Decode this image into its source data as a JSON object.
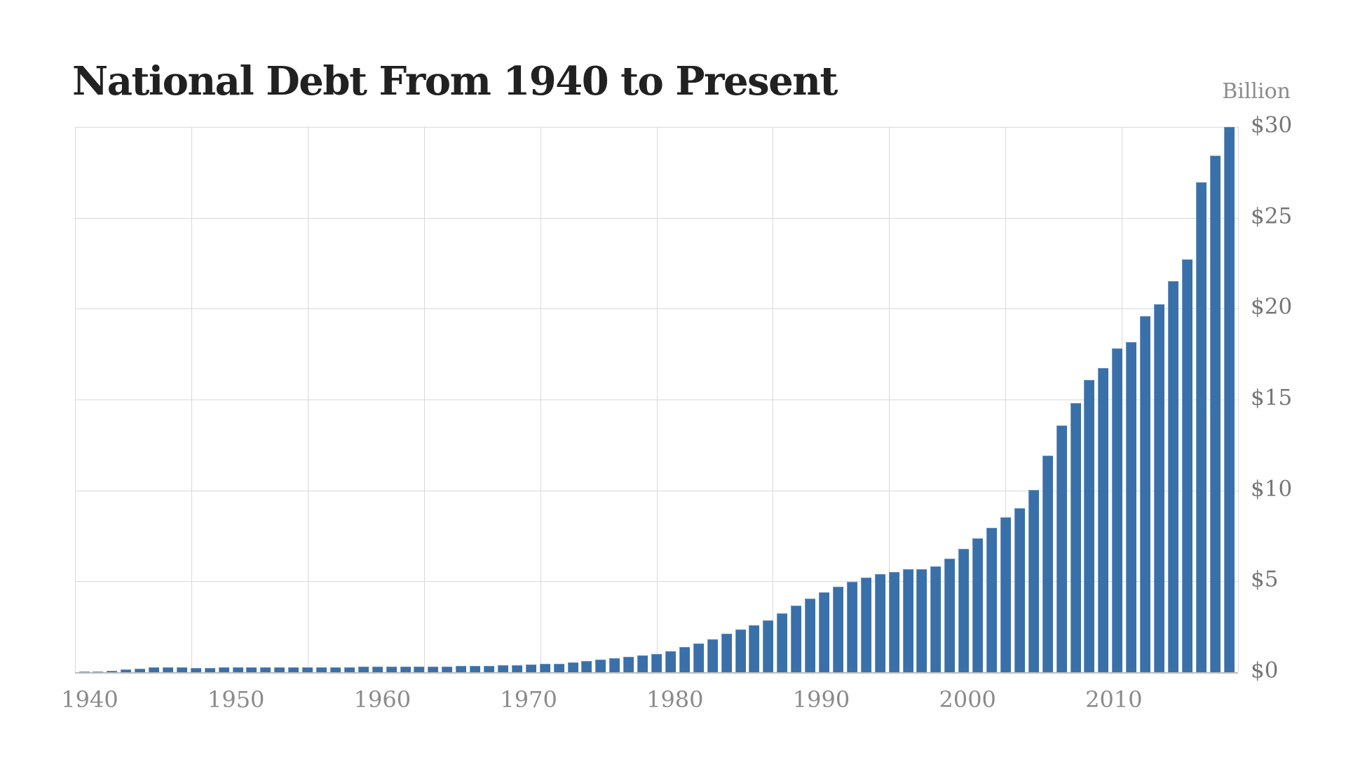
{
  "chart": {
    "title": "National Debt From 1940 to Present",
    "unit_label": "Billion"
  },
  "colors": {
    "bar": "#3a70a9",
    "gridline": "#d9d9d9",
    "zero_axis": "#bdbdbd",
    "title_text": "#212121",
    "x_label_text": "#8a8a8a",
    "y_label_text": "#757575",
    "background": "#ffffff"
  },
  "chart_data": {
    "type": "bar",
    "title": "National Debt From 1940 to Present",
    "unit_label": "Billion",
    "xlabel": "",
    "ylabel": "",
    "ylim": [
      0,
      30
    ],
    "grid": true,
    "legend": "none",
    "y_axis_side": "right",
    "ytick_labels": [
      "$0",
      "$5",
      "$10",
      "$15",
      "$20",
      "$25",
      "$30"
    ],
    "xtick_labels": [
      "1940",
      "1950",
      "1960",
      "1970",
      "1980",
      "1990",
      "2000",
      "2010"
    ],
    "years": [
      1940,
      1941,
      1942,
      1943,
      1944,
      1945,
      1946,
      1947,
      1948,
      1949,
      1950,
      1951,
      1952,
      1953,
      1954,
      1955,
      1956,
      1957,
      1958,
      1959,
      1960,
      1961,
      1962,
      1963,
      1964,
      1965,
      1966,
      1967,
      1968,
      1969,
      1970,
      1971,
      1972,
      1973,
      1974,
      1975,
      1976,
      1977,
      1978,
      1979,
      1980,
      1981,
      1982,
      1983,
      1984,
      1985,
      1986,
      1987,
      1988,
      1989,
      1990,
      1991,
      1992,
      1993,
      1994,
      1995,
      1996,
      1997,
      1998,
      1999,
      2000,
      2001,
      2002,
      2003,
      2004,
      2005,
      2006,
      2007,
      2008,
      2009,
      2010,
      2011,
      2012,
      2013,
      2014,
      2015,
      2016,
      2017,
      2018,
      2019,
      2020,
      2021,
      2022
    ],
    "values": [
      0.04,
      0.05,
      0.07,
      0.14,
      0.2,
      0.26,
      0.27,
      0.26,
      0.25,
      0.25,
      0.26,
      0.26,
      0.26,
      0.27,
      0.27,
      0.27,
      0.27,
      0.27,
      0.28,
      0.28,
      0.29,
      0.29,
      0.3,
      0.31,
      0.31,
      0.32,
      0.32,
      0.33,
      0.35,
      0.35,
      0.37,
      0.4,
      0.43,
      0.46,
      0.47,
      0.53,
      0.62,
      0.7,
      0.77,
      0.83,
      0.91,
      1.0,
      1.14,
      1.38,
      1.57,
      1.82,
      2.12,
      2.35,
      2.6,
      2.86,
      3.23,
      3.67,
      4.06,
      4.41,
      4.69,
      4.97,
      5.22,
      5.41,
      5.53,
      5.66,
      5.67,
      5.81,
      6.23,
      6.78,
      7.38,
      7.93,
      8.51,
      9.01,
      10.02,
      11.91,
      13.56,
      14.79,
      16.07,
      16.74,
      17.82,
      18.15,
      19.57,
      20.24,
      21.52,
      22.72,
      26.95,
      28.43,
      30.0
    ]
  }
}
